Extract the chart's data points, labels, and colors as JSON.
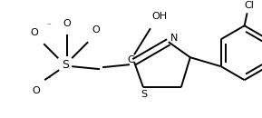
{
  "bg_color": "#ffffff",
  "line_color": "#000000",
  "lw": 1.4,
  "fs": 7.5,
  "figsize": [
    2.89,
    1.3
  ],
  "dpi": 100,
  "xlim": [
    0,
    289
  ],
  "ylim": [
    0,
    130
  ]
}
